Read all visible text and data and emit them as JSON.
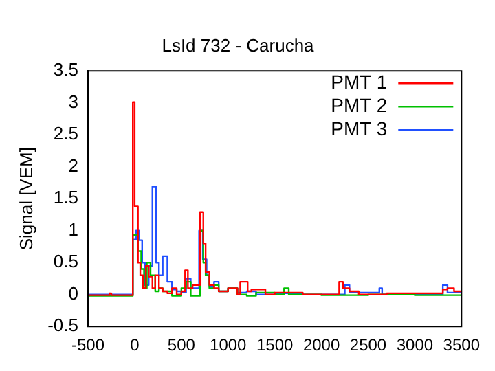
{
  "chart_data": {
    "type": "step",
    "title": "LsId 732 - Carucha",
    "ylabel": "Signal [VEM]",
    "xlim": [
      -500,
      3500
    ],
    "xticks": [
      -500,
      0,
      500,
      1000,
      1500,
      2000,
      2500,
      3000,
      3500
    ],
    "ylim": [
      -0.5,
      3.5
    ],
    "yticks": [
      -0.5,
      0,
      0.5,
      1,
      1.5,
      2,
      2.5,
      3,
      3.5
    ],
    "grid": false,
    "legend": "top right",
    "marker": "none",
    "line_style": "solid",
    "series": [
      {
        "name": "PMT 1",
        "color": "#ff0000",
        "x": [
          -500,
          -270,
          -250,
          -20,
          0,
          35,
          60,
          90,
          120,
          150,
          190,
          220,
          260,
          300,
          350,
          400,
          450,
          500,
          540,
          570,
          620,
          700,
          735,
          760,
          800,
          850,
          900,
          1000,
          1100,
          1130,
          1210,
          1250,
          1400,
          1500,
          1800,
          2190,
          2230,
          2300,
          2400,
          2700,
          3300,
          3350,
          3420,
          3500
        ],
        "values": [
          -0.01,
          0.02,
          -0.01,
          3.01,
          1.38,
          0.5,
          0.3,
          0.1,
          0.45,
          0.28,
          0.1,
          0.3,
          0.1,
          0.05,
          0.02,
          0.1,
          0,
          0.05,
          0.38,
          0.1,
          0.15,
          1.29,
          0.8,
          0.35,
          0.15,
          0.1,
          0.05,
          0.1,
          0,
          0.2,
          0.05,
          0.08,
          0,
          0.03,
          0,
          0.2,
          0.1,
          0.05,
          0,
          0.02,
          0.08,
          0.1,
          0.05,
          0.05
        ]
      },
      {
        "name": "PMT 2",
        "color": "#00c000",
        "x": [
          -500,
          -20,
          35,
          70,
          100,
          130,
          170,
          220,
          260,
          300,
          400,
          500,
          550,
          600,
          700,
          735,
          760,
          800,
          850,
          900,
          1000,
          1100,
          1200,
          1300,
          1500,
          1600,
          1650,
          2000,
          2500,
          3000,
          3500
        ],
        "values": [
          -0.02,
          0.93,
          0.68,
          0.4,
          0.1,
          0.5,
          0.3,
          0.05,
          0.1,
          0.05,
          -0.02,
          0.1,
          0.2,
          -0.02,
          1.0,
          0.5,
          0.3,
          0.1,
          0.15,
          0.05,
          0.1,
          0,
          -0.02,
          0.03,
          0,
          0.1,
          0,
          -0.01,
          0,
          -0.01,
          -0.01
        ]
      },
      {
        "name": "PMT 3",
        "color": "#2050ff",
        "x": [
          -500,
          -20,
          15,
          45,
          80,
          110,
          150,
          190,
          230,
          260,
          300,
          350,
          400,
          450,
          500,
          550,
          600,
          690,
          730,
          770,
          800,
          850,
          900,
          1000,
          1100,
          1200,
          1300,
          1500,
          1800,
          2250,
          2300,
          2620,
          2650,
          3300,
          3350,
          3400,
          3500
        ],
        "values": [
          0,
          0.86,
          1.0,
          0.85,
          0.5,
          0.15,
          0.45,
          1.69,
          0.5,
          0.3,
          0.6,
          0.2,
          0.08,
          0.05,
          0.03,
          0.25,
          0.1,
          1.0,
          0.55,
          0.3,
          0.12,
          0.2,
          0.05,
          0.1,
          0.03,
          0.05,
          0,
          0.02,
          0,
          0.15,
          0.03,
          0.1,
          0,
          0.15,
          0.03,
          0.03,
          0.03
        ]
      }
    ]
  }
}
